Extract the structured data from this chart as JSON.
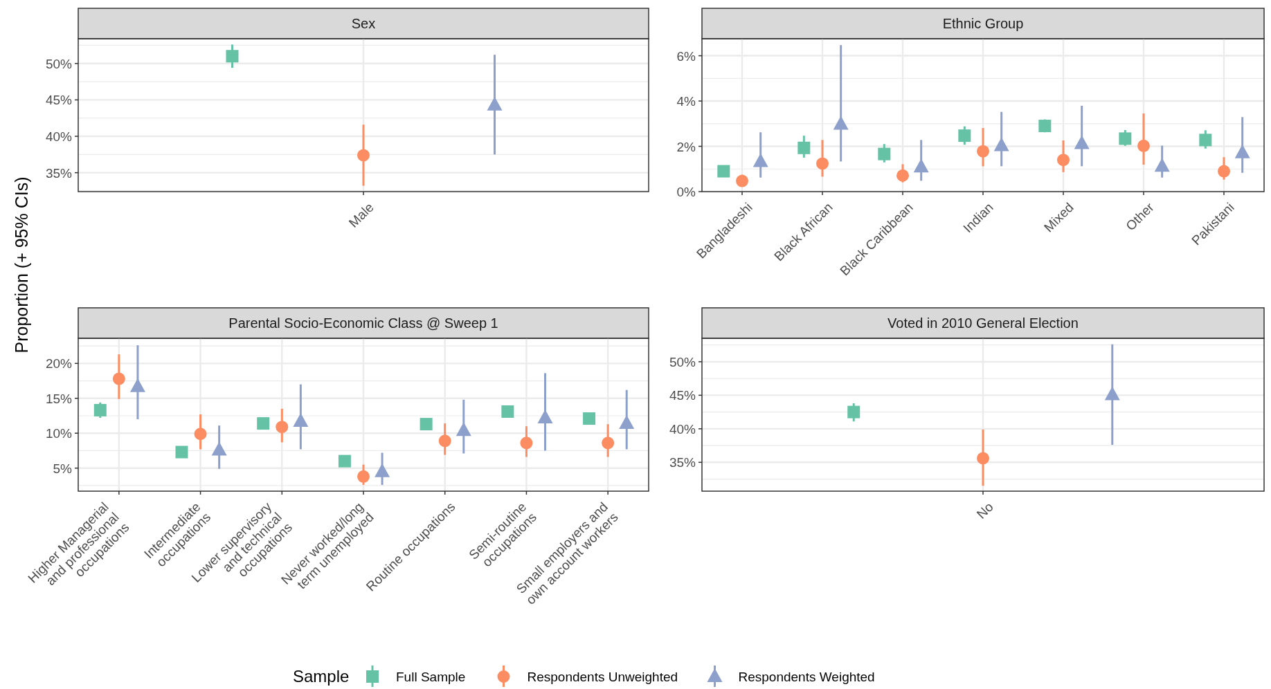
{
  "chart_data": [
    {
      "type": "scatter",
      "title": "Sex",
      "ylabel": "Proportion (+ 95% CIs)",
      "legend_title": "Sample",
      "legend": "bottom",
      "grid": true,
      "categories": [
        "Male"
      ],
      "ylim": [
        32.4,
        53.4
      ],
      "yticks": [
        {
          "value": 35,
          "label": "35%"
        },
        {
          "value": 40,
          "label": "40%"
        },
        {
          "value": 45,
          "label": "45%"
        },
        {
          "value": 50,
          "label": "50%"
        }
      ],
      "series": [
        {
          "name": "Full Sample",
          "color": "#66c2a5",
          "marker": "square",
          "values": [
            51.0
          ],
          "errors": [
            [
              49.4,
              52.6
            ]
          ]
        },
        {
          "name": "Respondents Unweighted",
          "color": "#fc8d62",
          "marker": "circle",
          "values": [
            37.4
          ],
          "errors": [
            [
              33.2,
              41.6
            ]
          ]
        },
        {
          "name": "Respondents Weighted",
          "color": "#8da0cb",
          "marker": "triangle",
          "values": [
            44.3
          ],
          "errors": [
            [
              37.5,
              51.2
            ]
          ]
        }
      ]
    },
    {
      "type": "scatter",
      "title": "Ethnic Group",
      "legend": "bottom",
      "grid": true,
      "categories": [
        "Bangladeshi",
        "Black African",
        "Black Caribbean",
        "Indian",
        "Mixed",
        "Other",
        "Pakistani"
      ],
      "ylim": [
        0,
        6.75
      ],
      "yticks": [
        {
          "value": 0,
          "label": "0%"
        },
        {
          "value": 2,
          "label": "2%"
        },
        {
          "value": 4,
          "label": "4%"
        },
        {
          "value": 6,
          "label": "6%"
        }
      ],
      "series": [
        {
          "name": "Full Sample",
          "color": "#66c2a5",
          "marker": "square",
          "values": [
            0.9,
            1.93,
            1.66,
            2.47,
            2.9,
            2.34,
            2.28
          ],
          "errors": [
            null,
            [
              1.5,
              2.47
            ],
            [
              1.29,
              2.1
            ],
            [
              2.07,
              2.88
            ],
            [
              2.62,
              3.19
            ],
            [
              2.02,
              2.72
            ],
            [
              1.9,
              2.71
            ]
          ]
        },
        {
          "name": "Respondents Unweighted",
          "color": "#fc8d62",
          "marker": "circle",
          "values": [
            0.47,
            1.24,
            0.71,
            1.78,
            1.4,
            2.02,
            0.9
          ],
          "errors": [
            [
              0.26,
              0.74
            ],
            [
              0.66,
              2.28
            ],
            [
              0.41,
              1.21
            ],
            [
              1.12,
              2.81
            ],
            [
              0.86,
              2.26
            ],
            [
              1.19,
              3.45
            ],
            [
              0.53,
              1.52
            ]
          ]
        },
        {
          "name": "Respondents Weighted",
          "color": "#8da0cb",
          "marker": "triangle",
          "values": [
            1.33,
            2.98,
            1.09,
            2.03,
            2.12,
            1.12,
            1.72
          ],
          "errors": [
            [
              0.62,
              2.62
            ],
            [
              1.33,
              6.47
            ],
            [
              0.48,
              2.28
            ],
            [
              1.12,
              3.52
            ],
            [
              1.12,
              3.79
            ],
            [
              0.62,
              2.03
            ],
            [
              0.83,
              3.29
            ]
          ]
        }
      ]
    },
    {
      "type": "scatter",
      "title": "Parental Socio-Economic Class @ Sweep 1",
      "legend": "bottom",
      "grid": true,
      "categories": [
        "Higher Managerial\nand professional\noccupations",
        "Intermediate\noccupations",
        "Lower supervisory\nand technical\noccupations",
        "Never worked/long\nterm unemployed",
        "Routine occupations",
        "Semi-routine\noccupations",
        "Small employers and\nown account workers"
      ],
      "ylim": [
        1.7,
        23.6
      ],
      "yticks": [
        {
          "value": 5,
          "label": "5%"
        },
        {
          "value": 10,
          "label": "10%"
        },
        {
          "value": 15,
          "label": "15%"
        },
        {
          "value": 20,
          "label": "20%"
        }
      ],
      "series": [
        {
          "name": "Full Sample",
          "color": "#66c2a5",
          "marker": "square",
          "values": [
            13.3,
            7.3,
            11.4,
            6.0,
            11.3,
            13.1,
            12.1
          ],
          "errors": [
            [
              12.2,
              14.4
            ],
            null,
            null,
            null,
            [
              10.5,
              12.1
            ],
            [
              12.5,
              13.7
            ],
            null
          ]
        },
        {
          "name": "Respondents Unweighted",
          "color": "#fc8d62",
          "marker": "circle",
          "values": [
            17.8,
            9.9,
            10.9,
            3.8,
            8.9,
            8.6,
            8.6
          ],
          "errors": [
            [
              14.9,
              21.3
            ],
            [
              7.7,
              12.7
            ],
            [
              8.7,
              13.5
            ],
            [
              2.6,
              5.5
            ],
            [
              6.9,
              11.4
            ],
            [
              6.6,
              11.0
            ],
            [
              6.6,
              11.3
            ]
          ]
        },
        {
          "name": "Respondents Weighted",
          "color": "#8da0cb",
          "marker": "triangle",
          "values": [
            16.7,
            7.6,
            11.7,
            4.5,
            10.4,
            12.2,
            11.4
          ],
          "errors": [
            [
              12.0,
              22.6
            ],
            [
              4.9,
              11.1
            ],
            [
              7.7,
              17.0
            ],
            [
              2.6,
              7.2
            ],
            [
              7.1,
              14.8
            ],
            [
              7.5,
              18.6
            ],
            [
              7.7,
              16.2
            ]
          ]
        }
      ]
    },
    {
      "type": "scatter",
      "title": "Voted in 2010 General Election",
      "legend": "bottom",
      "grid": true,
      "categories": [
        "No"
      ],
      "ylim": [
        30.7,
        53.5
      ],
      "yticks": [
        {
          "value": 35,
          "label": "35%"
        },
        {
          "value": 40,
          "label": "40%"
        },
        {
          "value": 45,
          "label": "45%"
        },
        {
          "value": 50,
          "label": "50%"
        }
      ],
      "series": [
        {
          "name": "Full Sample",
          "color": "#66c2a5",
          "marker": "square",
          "values": [
            42.5
          ],
          "errors": [
            [
              41.1,
              43.8
            ]
          ]
        },
        {
          "name": "Respondents Unweighted",
          "color": "#fc8d62",
          "marker": "circle",
          "values": [
            35.6
          ],
          "errors": [
            [
              31.5,
              39.9
            ]
          ]
        },
        {
          "name": "Respondents Weighted",
          "color": "#8da0cb",
          "marker": "triangle",
          "values": [
            45.1
          ],
          "errors": [
            [
              37.6,
              52.6
            ]
          ]
        }
      ]
    }
  ]
}
